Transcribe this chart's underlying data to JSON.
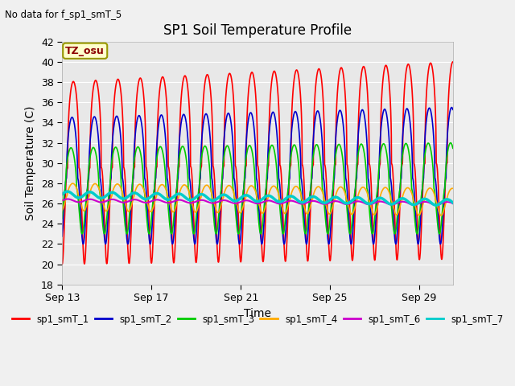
{
  "title": "SP1 Soil Temperature Profile",
  "no_data_note": "No data for f_sp1_smT_5",
  "tz_label": "TZ_osu",
  "xlabel": "Time",
  "ylabel": "Soil Temperature (C)",
  "ylim": [
    18,
    42
  ],
  "xlim_days": [
    0,
    17.5
  ],
  "x_ticks_days": [
    0,
    4,
    8,
    12,
    16
  ],
  "x_tick_labels": [
    "Sep 13",
    "Sep 17",
    "Sep 21",
    "Sep 25",
    "Sep 29"
  ],
  "y_ticks": [
    18,
    20,
    22,
    24,
    26,
    28,
    30,
    32,
    34,
    36,
    38,
    40,
    42
  ],
  "bg_color": "#e8e8e8",
  "fig_bg_color": "#f0f0f0",
  "legend_entries": [
    "sp1_smT_1",
    "sp1_smT_2",
    "sp1_smT_3",
    "sp1_smT_4",
    "sp1_smT_6",
    "sp1_smT_7"
  ],
  "line_colors": [
    "#ff0000",
    "#0000cc",
    "#00cc00",
    "#ffaa00",
    "#cc00cc",
    "#00cccc"
  ],
  "line_widths": [
    1.2,
    1.2,
    1.2,
    1.2,
    1.5,
    2.5
  ],
  "period_days": 1.0,
  "n_points": 2000
}
